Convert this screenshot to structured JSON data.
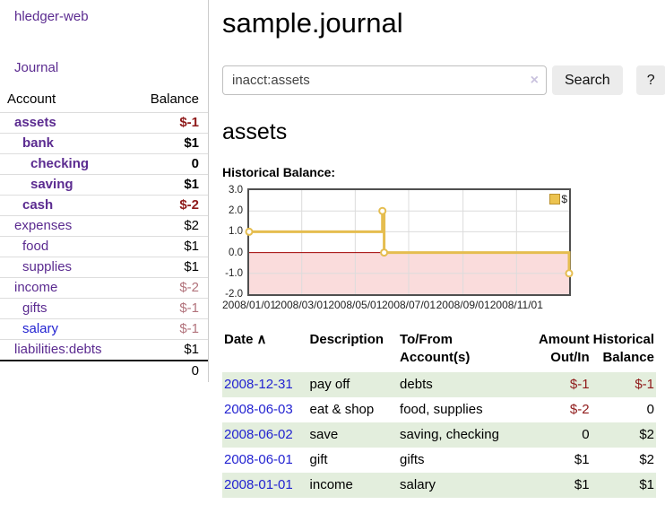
{
  "app": {
    "title": "hledger-web",
    "nav_journal": "Journal"
  },
  "page": {
    "title": "sample.journal",
    "account_heading": "assets",
    "chart_label": "Historical Balance:"
  },
  "search": {
    "value": "inacct:assets",
    "clear_icon": "×",
    "button_label": "Search",
    "help_label": "?"
  },
  "sidebar": {
    "header": {
      "account": "Account",
      "balance": "Balance"
    },
    "accounts": [
      {
        "name": "assets",
        "depth": 1,
        "balance": "$-1",
        "bold": true,
        "negative": "strong"
      },
      {
        "name": "bank",
        "depth": 2,
        "balance": "$1",
        "bold": true
      },
      {
        "name": "checking",
        "depth": 3,
        "balance": "0",
        "bold": true
      },
      {
        "name": "saving",
        "depth": 3,
        "balance": "$1",
        "bold": true
      },
      {
        "name": "cash",
        "depth": 2,
        "balance": "$-2",
        "bold": true,
        "negative": "strong"
      },
      {
        "name": "expenses",
        "depth": 1,
        "balance": "$2"
      },
      {
        "name": "food",
        "depth": 2,
        "balance": "$1"
      },
      {
        "name": "supplies",
        "depth": 2,
        "balance": "$1"
      },
      {
        "name": "income",
        "depth": 1,
        "balance": "$-2",
        "negative": "muted"
      },
      {
        "name": "gifts",
        "depth": 2,
        "balance": "$-1",
        "negative": "muted"
      },
      {
        "name": "salary",
        "depth": 2,
        "balance": "$-1",
        "negative": "muted",
        "link": "blue"
      },
      {
        "name": "liabilities:debts",
        "depth": 1,
        "balance": "$1"
      }
    ],
    "total": "0"
  },
  "chart_data": {
    "type": "line",
    "step": true,
    "title": "Historical Balance:",
    "series": [
      {
        "name": "$",
        "x": [
          "2008-01-01",
          "2008-06-01",
          "2008-06-02",
          "2008-06-03",
          "2008-12-31"
        ],
        "values": [
          1,
          2,
          2,
          0,
          -1
        ]
      }
    ],
    "xlim": [
      "2008-01-01",
      "2008-12-31"
    ],
    "ylim": [
      -2,
      3
    ],
    "yticks": [
      {
        "label": "3.0",
        "value": 3
      },
      {
        "label": "2.0",
        "value": 2
      },
      {
        "label": "1.0",
        "value": 1
      },
      {
        "label": "0.0",
        "value": 0
      },
      {
        "label": "-1.0",
        "value": -1
      },
      {
        "label": "-2.0",
        "value": -2
      }
    ],
    "xticks": [
      {
        "label": "2008/01/01",
        "date": "2008-01-01"
      },
      {
        "label": "2008/03/01",
        "date": "2008-03-01"
      },
      {
        "label": "2008/05/01",
        "date": "2008-05-01"
      },
      {
        "label": "2008/07/01",
        "date": "2008-07-01"
      },
      {
        "label": "2008/09/01",
        "date": "2008-09-01"
      },
      {
        "label": "2008/11/01",
        "date": "2008-11-01"
      }
    ],
    "legend_position": "top-right",
    "grid": true,
    "line_color": "#e5bd4f",
    "zero_line_color": "#a00000",
    "negative_region_color": "#fadcdc"
  },
  "register": {
    "headers": {
      "date": "Date",
      "sort_icon": "∧",
      "description": "Description",
      "account": "To/From Account(s)",
      "amount": "Amount Out/In",
      "balance": "Historical Balance"
    },
    "rows": [
      {
        "date": "2008-12-31",
        "description": "pay off",
        "accounts": "debts",
        "amount": "$-1",
        "balance": "$-1",
        "amount_negative": true,
        "balance_negative": true,
        "shaded": true
      },
      {
        "date": "2008-06-03",
        "description": "eat & shop",
        "accounts": "food, supplies",
        "amount": "$-2",
        "balance": "0",
        "amount_negative": true,
        "shaded": false
      },
      {
        "date": "2008-06-02",
        "description": "save",
        "accounts": "saving, checking",
        "amount": "0",
        "balance": "$2",
        "shaded": true
      },
      {
        "date": "2008-06-01",
        "description": "gift",
        "accounts": "gifts",
        "amount": "$1",
        "balance": "$2",
        "shaded": false
      },
      {
        "date": "2008-01-01",
        "description": "income",
        "accounts": "salary",
        "amount": "$1",
        "balance": "$1",
        "shaded": true
      }
    ]
  }
}
